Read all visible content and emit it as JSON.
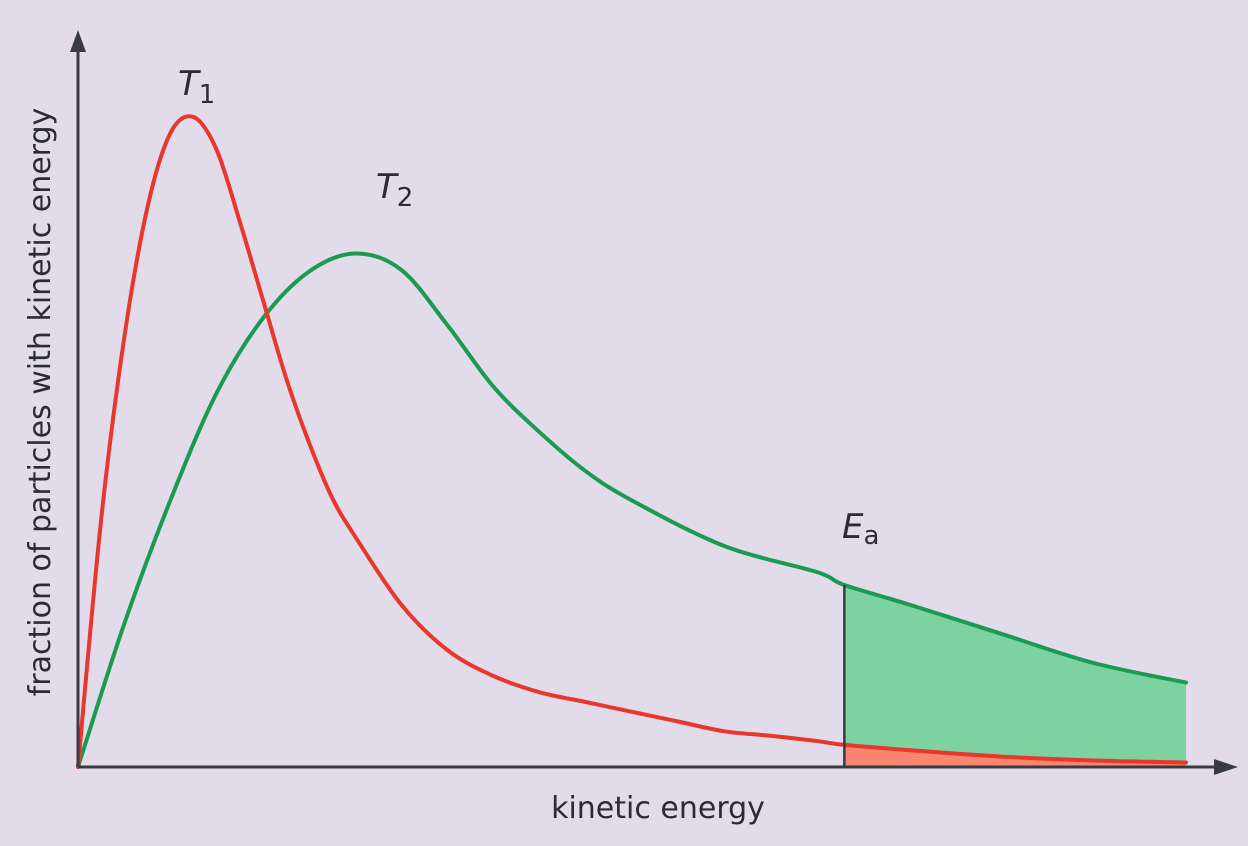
{
  "chart_data": {
    "type": "line",
    "title": "",
    "xlabel": "kinetic energy",
    "ylabel": "fraction of particles with kinetic energy",
    "xlim": [
      0,
      12
    ],
    "ylim": [
      0,
      1
    ],
    "grid": false,
    "series": [
      {
        "name": "T1",
        "label_main": "T",
        "label_sub": "1",
        "color": "#e8372c",
        "fill_color": "#f9866f",
        "x": [
          0,
          0.25,
          0.5,
          0.75,
          1.0,
          1.25,
          1.5,
          1.75,
          2.0,
          2.25,
          2.5,
          2.75,
          3.0,
          3.5,
          4.0,
          4.5,
          5.0,
          5.5,
          6.0,
          6.5,
          7.0,
          7.5,
          8.0,
          8.3,
          9.0,
          10.0,
          11.0,
          12.0
        ],
        "y": [
          0,
          0.38,
          0.66,
          0.86,
          0.975,
          1.0,
          0.95,
          0.84,
          0.72,
          0.6,
          0.5,
          0.415,
          0.355,
          0.25,
          0.18,
          0.14,
          0.115,
          0.1,
          0.085,
          0.07,
          0.055,
          0.048,
          0.04,
          0.034,
          0.026,
          0.016,
          0.01,
          0.007
        ]
      },
      {
        "name": "T2",
        "label_main": "T",
        "label_sub": "2",
        "color": "#1c9a52",
        "fill_color": "#7dd39f",
        "x": [
          0,
          0.5,
          1.0,
          1.5,
          2.0,
          2.5,
          3.0,
          3.5,
          4.0,
          4.5,
          5.0,
          5.5,
          6.0,
          7.0,
          8.0,
          8.3,
          9.0,
          10.0,
          11.0,
          12.0
        ],
        "y": [
          0,
          0.22,
          0.41,
          0.575,
          0.69,
          0.762,
          0.79,
          0.765,
          0.68,
          0.585,
          0.515,
          0.455,
          0.41,
          0.34,
          0.3,
          0.28,
          0.25,
          0.205,
          0.16,
          0.13
        ]
      }
    ],
    "threshold": {
      "label_main": "E",
      "label_sub": "a",
      "x": 8.3
    }
  },
  "colors": {
    "background": "#e2dcea",
    "axis": "#3a3a44"
  }
}
